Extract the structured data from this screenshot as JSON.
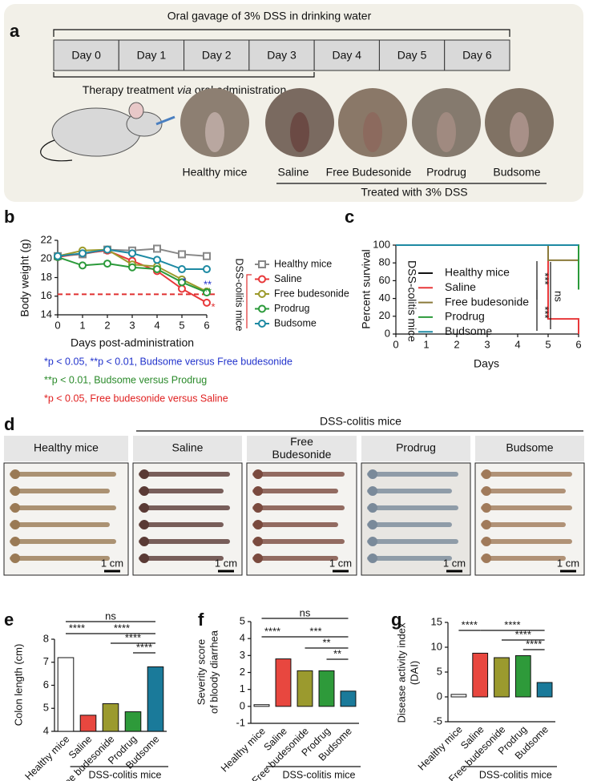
{
  "panel_a": {
    "label": "a",
    "title": "Oral gavage of 3% DSS in drinking water",
    "days": [
      "Day 0",
      "Day 1",
      "Day 2",
      "Day 3",
      "Day 4",
      "Day 5",
      "Day 6"
    ],
    "therapy": [
      "Therapy treatment ",
      "via",
      " oral administration"
    ],
    "photos": [
      "Healthy mice",
      "Saline",
      "Free Budesonide",
      "Prodrug",
      "Budsome"
    ],
    "treated": "Treated with 3% DSS"
  },
  "chart_data": [
    {
      "type": "line",
      "label": "b",
      "ylabel": "Body weight (g)",
      "xlabel": "Days post-administration",
      "group_label": "DSS-colitis mice",
      "x": [
        0,
        1,
        2,
        3,
        4,
        5,
        6
      ],
      "xlim": [
        0,
        6
      ],
      "xticks": [
        0,
        1,
        2,
        3,
        4,
        5,
        6
      ],
      "ylim": [
        14,
        22
      ],
      "yticks": [
        14,
        16,
        18,
        20,
        22
      ],
      "hline": 16.2,
      "annotations": [
        "*",
        "**",
        "**",
        "*"
      ],
      "series": [
        {
          "name": "Healthy mice",
          "color": "#888888",
          "marker": "square",
          "values": [
            20.3,
            20.5,
            21.0,
            20.9,
            21.1,
            20.5,
            20.3
          ]
        },
        {
          "name": "Saline",
          "color": "#e8383a",
          "marker": "circle",
          "values": [
            20.2,
            20.6,
            20.9,
            19.8,
            18.7,
            16.8,
            15.3
          ]
        },
        {
          "name": "Free budesonide",
          "color": "#9c9a2b",
          "marker": "circle",
          "values": [
            20.3,
            20.9,
            21.0,
            19.4,
            19.2,
            17.8,
            16.5
          ]
        },
        {
          "name": "Prodrug",
          "color": "#2b9a3a",
          "marker": "circle",
          "values": [
            20.2,
            19.3,
            19.5,
            19.1,
            18.9,
            17.5,
            16.4
          ]
        },
        {
          "name": "Budsome",
          "color": "#1e8aa3",
          "marker": "circle",
          "values": [
            20.3,
            20.6,
            21.0,
            20.6,
            19.9,
            18.9,
            18.9
          ]
        }
      ]
    },
    {
      "type": "line",
      "label": "c",
      "ylabel": "Percent survival",
      "xlabel": "Days",
      "group_label": "DSS-colitis mice",
      "xlim": [
        0,
        6
      ],
      "xticks": [
        0,
        1,
        2,
        3,
        4,
        5,
        6
      ],
      "ylim": [
        0,
        100
      ],
      "yticks": [
        0,
        20,
        40,
        60,
        80,
        100
      ],
      "annotations": [
        "***",
        "***",
        "ns"
      ],
      "series": [
        {
          "name": "Healthy mice",
          "color": "#111111",
          "x": [
            0,
            6
          ],
          "values": [
            100,
            100
          ]
        },
        {
          "name": "Saline",
          "color": "#e8383a",
          "x": [
            0,
            5,
            5,
            6,
            6
          ],
          "values": [
            100,
            100,
            17,
            17,
            0
          ]
        },
        {
          "name": "Free budesonide",
          "color": "#8b7a3a",
          "x": [
            0,
            5,
            5,
            6,
            6
          ],
          "values": [
            100,
            100,
            83,
            83,
            50
          ]
        },
        {
          "name": "Prodrug",
          "color": "#2b9a3a",
          "x": [
            0,
            6,
            6
          ],
          "values": [
            100,
            100,
            50
          ]
        },
        {
          "name": "Budsome",
          "color": "#1e8aa3",
          "x": [
            0,
            6
          ],
          "values": [
            100,
            100
          ]
        }
      ]
    },
    {
      "type": "bar",
      "label": "e",
      "ylabel": [
        "Colon length (cm)"
      ],
      "group_label": "DSS-colitis mice",
      "categories": [
        "Healthy mice",
        "Saline",
        "Free budesonide",
        "Prodrug",
        "Budsome"
      ],
      "values": [
        7.2,
        4.7,
        5.2,
        4.85,
        6.8
      ],
      "colors": [
        "#ffffff",
        "#e8473f",
        "#9b9a2e",
        "#2e9a3a",
        "#1a7a9a"
      ],
      "ylim": [
        4,
        8
      ],
      "yticks": [
        4,
        5,
        6,
        7,
        8
      ],
      "annotations": [
        "ns",
        "****",
        "****",
        "****",
        "****"
      ]
    },
    {
      "type": "bar",
      "label": "f",
      "ylabel": [
        "Severity score",
        "of bloody diarrhea"
      ],
      "group_label": "DSS-colitis mice",
      "categories": [
        "Healthy mice",
        "Saline",
        "Free budesonide",
        "Prodrug",
        "Budsome"
      ],
      "values": [
        0.1,
        2.8,
        2.1,
        2.1,
        0.9
      ],
      "colors": [
        "#ffffff",
        "#e8473f",
        "#9b9a2e",
        "#2e9a3a",
        "#1a7a9a"
      ],
      "ylim": [
        -1,
        5
      ],
      "yticks": [
        -1,
        0,
        1,
        2,
        3,
        4,
        5
      ],
      "annotations": [
        "ns",
        "****",
        "***",
        "**",
        "**"
      ]
    },
    {
      "type": "bar",
      "label": "g",
      "ylabel": [
        "Disease activity index",
        "(DAI)"
      ],
      "group_label": "DSS-colitis mice",
      "categories": [
        "Healthy mice",
        "Saline",
        "Free budesonide",
        "Prodrug",
        "Budsome"
      ],
      "values": [
        0.5,
        8.8,
        7.9,
        8.3,
        2.9
      ],
      "colors": [
        "#ffffff",
        "#e8473f",
        "#9b9a2e",
        "#2e9a3a",
        "#1a7a9a"
      ],
      "ylim": [
        -5,
        15
      ],
      "yticks": [
        -5,
        0,
        5,
        10,
        15
      ],
      "annotations": [
        "****",
        "****",
        "****",
        "****"
      ]
    }
  ],
  "notes": [
    "*p < 0.05, **p < 0.01, Budsome versus Free budesonide",
    "**p < 0.01, Budsome versus Prodrug",
    "*p < 0.05, Free budesonide versus Saline"
  ],
  "panel_d": {
    "label": "d",
    "group": "DSS-colitis mice",
    "groups": [
      "Healthy mice",
      "Saline",
      "Free Budesonide",
      "Prodrug",
      "Budsome"
    ],
    "scale": "1 cm"
  }
}
